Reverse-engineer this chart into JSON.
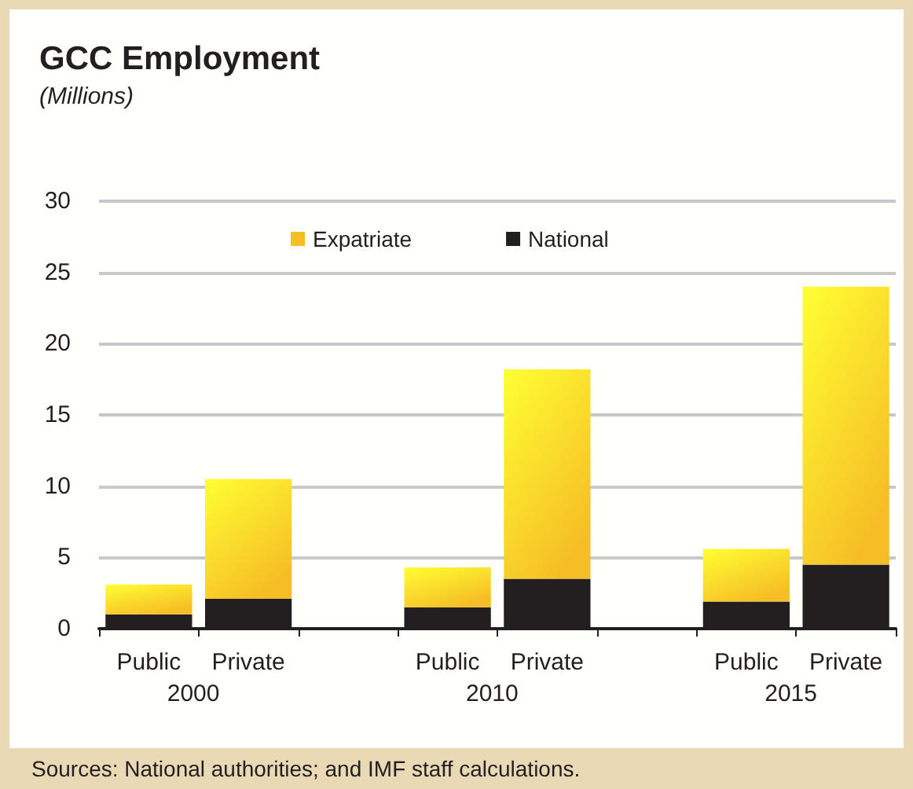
{
  "chart_data": {
    "type": "bar",
    "title": "GCC Employment",
    "subtitle": "(Millions)",
    "categories": [
      "Public",
      "Private",
      null,
      "Public",
      "Private",
      null,
      "Public",
      "Private"
    ],
    "series": [
      {
        "name": "National",
        "color": "#231f20",
        "values": [
          1.0,
          2.1,
          null,
          1.5,
          3.5,
          null,
          1.9,
          4.5
        ]
      },
      {
        "name": "Expatriate",
        "color": "#f6be26",
        "values": [
          2.1,
          8.4,
          null,
          2.8,
          14.7,
          null,
          3.7,
          19.5
        ]
      }
    ],
    "stacked": true,
    "ylim": [
      0,
      30
    ],
    "yticks": [
      0,
      5,
      10,
      15,
      20,
      25,
      30
    ],
    "grid": "y",
    "legend": "top",
    "annotations": [
      "2000",
      "2010",
      "2015",
      "Sources: National authorities; and IMF staff calculations."
    ]
  }
}
